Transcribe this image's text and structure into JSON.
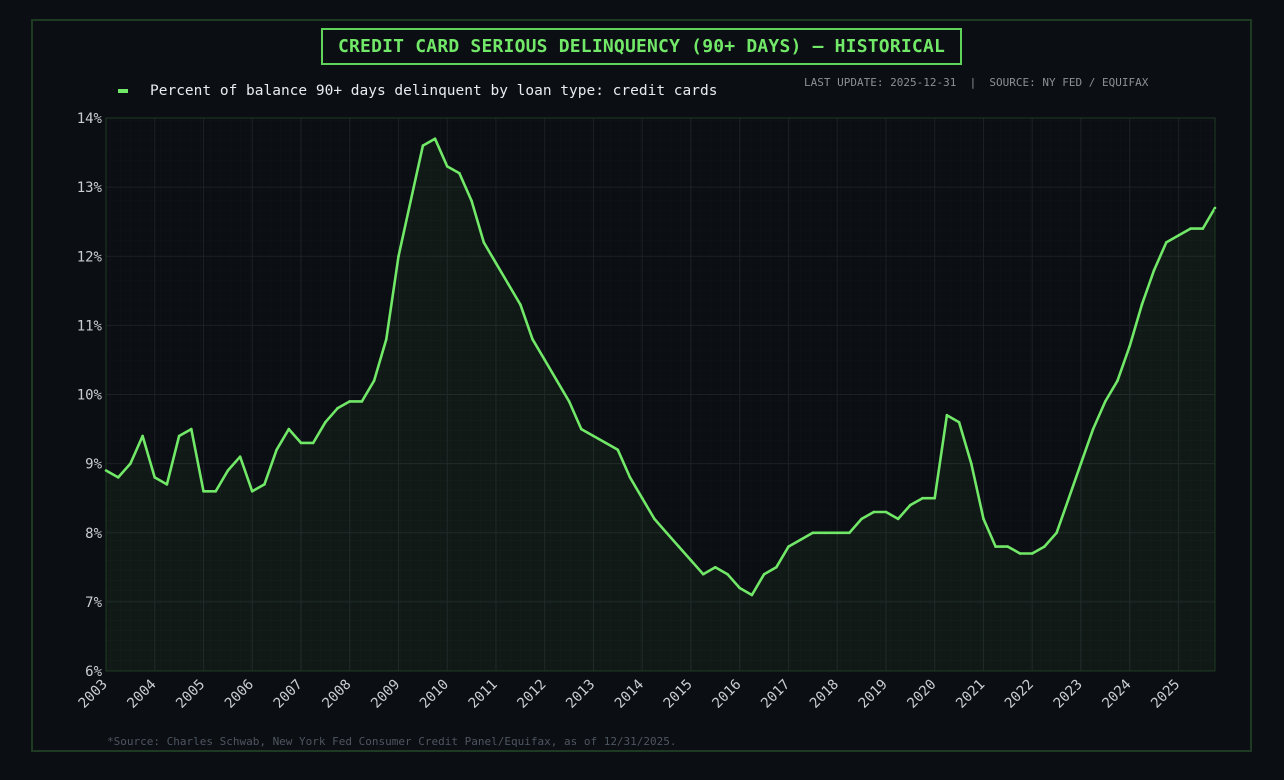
{
  "title": "CREDIT CARD SERIOUS DELINQUENCY (90+ DAYS) — HISTORICAL",
  "legend_label": "Percent of balance 90+ days delinquent by loan type: credit cards",
  "meta": "LAST UPDATE: 2025-12-31  |  SOURCE: NY FED / EQUIFAX",
  "footnote": "*Source: Charles Schwab, New York Fed Consumer Credit Panel/Equifax, as of 12/31/2025.",
  "colors": {
    "line": "#72e868",
    "background": "#0b0e12",
    "grid": "#1a1f25"
  },
  "chart_data": {
    "type": "area",
    "xlabel": "",
    "ylabel": "",
    "xlim": [
      2003.0,
      2025.75
    ],
    "ylim": [
      6,
      14
    ],
    "grid": true,
    "legend_position": "top-left",
    "x_tick_labels": [
      "2003",
      "2004",
      "2005",
      "2006",
      "2007",
      "2008",
      "2009",
      "2010",
      "2011",
      "2012",
      "2013",
      "2014",
      "2015",
      "2016",
      "2017",
      "2018",
      "2019",
      "2020",
      "2021",
      "2022",
      "2023",
      "2024",
      "2025"
    ],
    "y_tick_labels": [
      "6%",
      "7%",
      "8%",
      "9%",
      "10%",
      "11%",
      "12%",
      "13%",
      "14%"
    ],
    "series": [
      {
        "name": "Percent of balance 90+ days delinquent by loan type: credit cards",
        "x": [
          2003.0,
          2003.25,
          2003.5,
          2003.75,
          2004.0,
          2004.25,
          2004.5,
          2004.75,
          2005.0,
          2005.25,
          2005.5,
          2005.75,
          2006.0,
          2006.25,
          2006.5,
          2006.75,
          2007.0,
          2007.25,
          2007.5,
          2007.75,
          2008.0,
          2008.25,
          2008.5,
          2008.75,
          2009.0,
          2009.25,
          2009.5,
          2009.75,
          2010.0,
          2010.25,
          2010.5,
          2010.75,
          2011.0,
          2011.25,
          2011.5,
          2011.75,
          2012.0,
          2012.25,
          2012.5,
          2012.75,
          2013.0,
          2013.25,
          2013.5,
          2013.75,
          2014.0,
          2014.25,
          2014.5,
          2014.75,
          2015.0,
          2015.25,
          2015.5,
          2015.75,
          2016.0,
          2016.25,
          2016.5,
          2016.75,
          2017.0,
          2017.25,
          2017.5,
          2017.75,
          2018.0,
          2018.25,
          2018.5,
          2018.75,
          2019.0,
          2019.25,
          2019.5,
          2019.75,
          2020.0,
          2020.25,
          2020.5,
          2020.75,
          2021.0,
          2021.25,
          2021.5,
          2021.75,
          2022.0,
          2022.25,
          2022.5,
          2022.75,
          2023.0,
          2023.25,
          2023.5,
          2023.75,
          2024.0,
          2024.25,
          2024.5,
          2024.75,
          2025.0,
          2025.25,
          2025.5,
          2025.75
        ],
        "y": [
          8.9,
          8.8,
          9.0,
          9.4,
          8.8,
          8.7,
          9.4,
          9.5,
          8.6,
          8.6,
          8.9,
          9.1,
          8.6,
          8.7,
          9.2,
          9.5,
          9.3,
          9.3,
          9.6,
          9.8,
          9.9,
          9.9,
          10.2,
          10.8,
          12.0,
          12.8,
          13.6,
          13.7,
          13.3,
          13.2,
          12.8,
          12.2,
          11.9,
          11.6,
          11.3,
          10.8,
          10.5,
          10.2,
          9.9,
          9.5,
          9.4,
          9.3,
          9.2,
          8.8,
          8.5,
          8.2,
          8.0,
          7.8,
          7.6,
          7.4,
          7.5,
          7.4,
          7.2,
          7.1,
          7.4,
          7.5,
          7.8,
          7.9,
          8.0,
          8.0,
          8.0,
          8.0,
          8.2,
          8.3,
          8.3,
          8.2,
          8.4,
          8.5,
          8.5,
          9.7,
          9.6,
          9.0,
          8.2,
          7.8,
          7.8,
          7.7,
          7.7,
          7.8,
          8.0,
          8.5,
          9.0,
          9.5,
          9.9,
          10.2,
          10.7,
          11.3,
          11.8,
          12.2,
          12.3,
          12.4,
          12.4,
          12.7
        ]
      }
    ]
  }
}
